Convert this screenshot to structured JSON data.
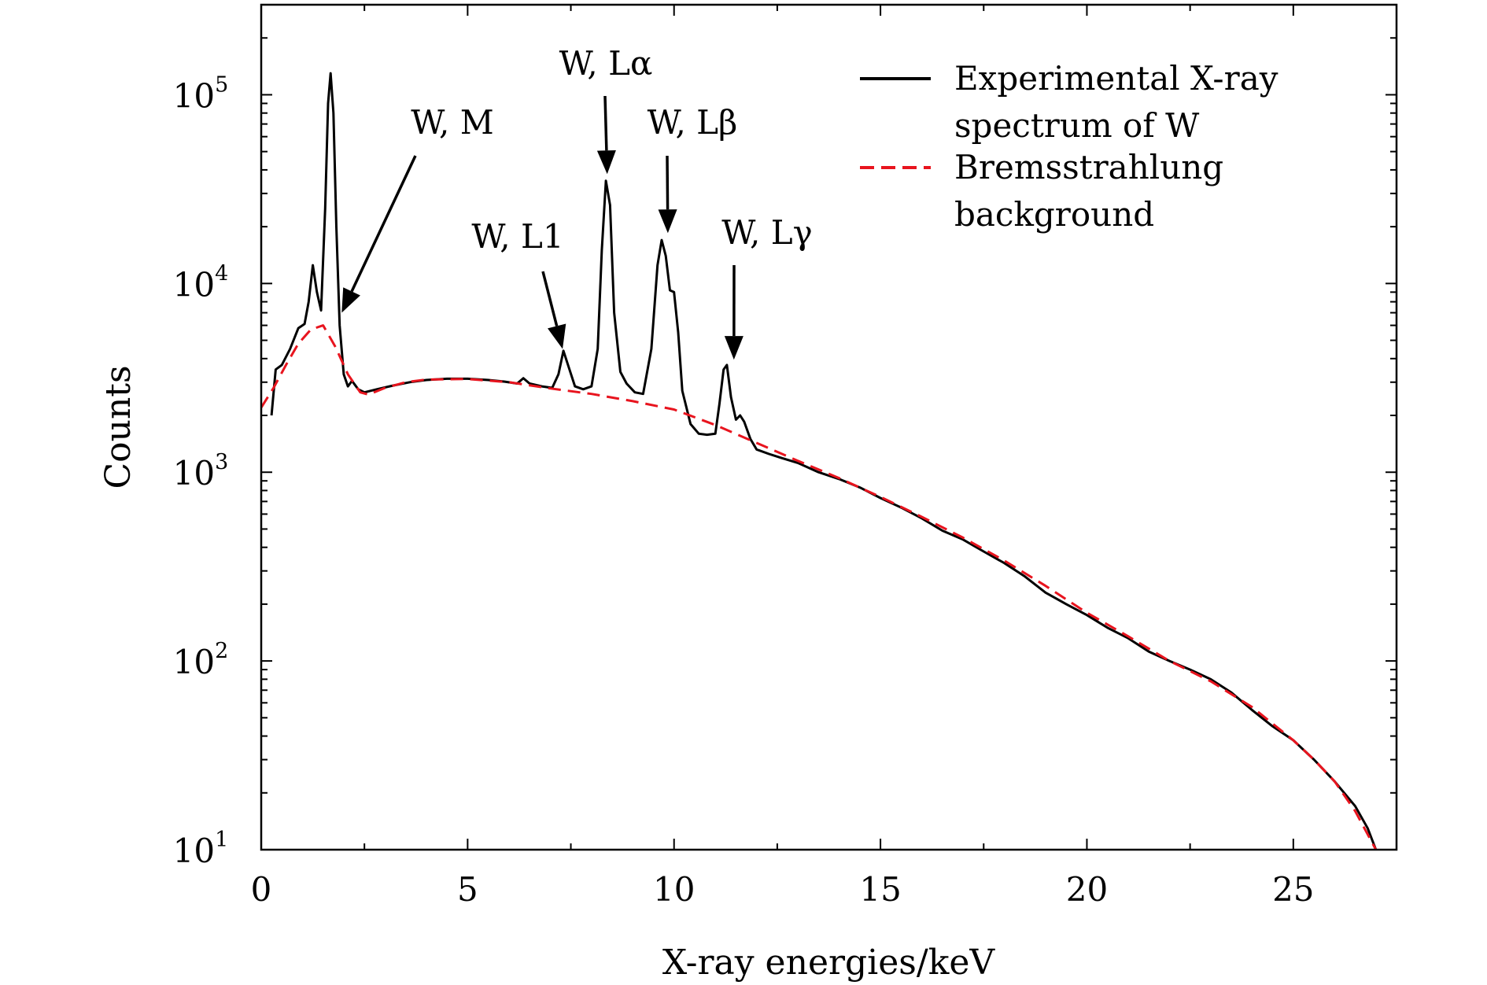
{
  "chart_data": {
    "type": "line",
    "title": "",
    "xlabel": "X-ray energies/keV",
    "ylabel": "Counts",
    "xlim": [
      0,
      27.5
    ],
    "ylim": [
      10,
      300000
    ],
    "yscale": "log",
    "grid": false,
    "legend_position": "top-right",
    "x_ticks": [
      0,
      5,
      10,
      15,
      20,
      25
    ],
    "x_tick_labels": [
      "0",
      "5",
      "10",
      "15",
      "20",
      "25"
    ],
    "y_ticks": [
      {
        "value": 10,
        "base": "10",
        "exp": "1"
      },
      {
        "value": 100,
        "base": "10",
        "exp": "2"
      },
      {
        "value": 1000,
        "base": "10",
        "exp": "3"
      },
      {
        "value": 10000,
        "base": "10",
        "exp": "4"
      },
      {
        "value": 100000,
        "base": "10",
        "exp": "5"
      }
    ],
    "series": [
      {
        "name": "Experimental X-ray spectrum of W",
        "legend_lines": [
          "Experimental X-ray",
          "spectrum of W"
        ],
        "color": "#000000",
        "style": "solid",
        "points": [
          [
            0.25,
            2000
          ],
          [
            0.35,
            3500
          ],
          [
            0.5,
            3700
          ],
          [
            0.7,
            4500
          ],
          [
            0.9,
            5800
          ],
          [
            1.05,
            6100
          ],
          [
            1.15,
            8000
          ],
          [
            1.25,
            12500
          ],
          [
            1.35,
            9000
          ],
          [
            1.45,
            7200
          ],
          [
            1.55,
            25000
          ],
          [
            1.62,
            90000
          ],
          [
            1.68,
            130000
          ],
          [
            1.75,
            80000
          ],
          [
            1.82,
            20000
          ],
          [
            1.9,
            6000
          ],
          [
            2.0,
            3300
          ],
          [
            2.1,
            2850
          ],
          [
            2.2,
            3050
          ],
          [
            2.35,
            2750
          ],
          [
            2.5,
            2650
          ],
          [
            2.8,
            2750
          ],
          [
            3.2,
            2880
          ],
          [
            3.6,
            3000
          ],
          [
            4.0,
            3080
          ],
          [
            4.5,
            3130
          ],
          [
            5.0,
            3130
          ],
          [
            5.5,
            3080
          ],
          [
            5.9,
            3020
          ],
          [
            6.2,
            2950
          ],
          [
            6.35,
            3150
          ],
          [
            6.5,
            2950
          ],
          [
            6.8,
            2850
          ],
          [
            7.05,
            2800
          ],
          [
            7.2,
            3300
          ],
          [
            7.32,
            4400
          ],
          [
            7.45,
            3600
          ],
          [
            7.6,
            2850
          ],
          [
            7.8,
            2750
          ],
          [
            8.0,
            2850
          ],
          [
            8.15,
            4500
          ],
          [
            8.25,
            15000
          ],
          [
            8.35,
            35000
          ],
          [
            8.45,
            26000
          ],
          [
            8.55,
            7000
          ],
          [
            8.7,
            3400
          ],
          [
            8.85,
            2950
          ],
          [
            9.05,
            2650
          ],
          [
            9.25,
            2600
          ],
          [
            9.45,
            4500
          ],
          [
            9.6,
            12500
          ],
          [
            9.7,
            17000
          ],
          [
            9.8,
            14000
          ],
          [
            9.9,
            9200
          ],
          [
            10.0,
            9000
          ],
          [
            10.1,
            5500
          ],
          [
            10.2,
            2700
          ],
          [
            10.4,
            1800
          ],
          [
            10.6,
            1600
          ],
          [
            10.8,
            1580
          ],
          [
            11.0,
            1600
          ],
          [
            11.1,
            2300
          ],
          [
            11.2,
            3500
          ],
          [
            11.28,
            3700
          ],
          [
            11.38,
            2500
          ],
          [
            11.5,
            1900
          ],
          [
            11.6,
            2000
          ],
          [
            11.7,
            1850
          ],
          [
            11.85,
            1500
          ],
          [
            12.0,
            1320
          ],
          [
            12.3,
            1250
          ],
          [
            12.6,
            1190
          ],
          [
            13.0,
            1120
          ],
          [
            13.5,
            1000
          ],
          [
            14.0,
            920
          ],
          [
            14.5,
            830
          ],
          [
            15.0,
            730
          ],
          [
            15.5,
            650
          ],
          [
            16.0,
            570
          ],
          [
            16.5,
            490
          ],
          [
            17.0,
            440
          ],
          [
            17.5,
            380
          ],
          [
            18.0,
            330
          ],
          [
            18.5,
            280
          ],
          [
            19.0,
            230
          ],
          [
            19.5,
            200
          ],
          [
            20.0,
            175
          ],
          [
            20.5,
            150
          ],
          [
            21.0,
            132
          ],
          [
            21.5,
            112
          ],
          [
            22.0,
            100
          ],
          [
            22.5,
            90
          ],
          [
            23.0,
            80
          ],
          [
            23.5,
            68
          ],
          [
            24.0,
            55
          ],
          [
            24.5,
            45
          ],
          [
            25.0,
            38
          ],
          [
            25.5,
            30
          ],
          [
            26.0,
            23
          ],
          [
            26.5,
            17
          ],
          [
            26.8,
            13
          ],
          [
            27.0,
            10
          ]
        ]
      },
      {
        "name": "Bremsstrahlung background",
        "legend_lines": [
          "Bremsstrahlung",
          "background"
        ],
        "color": "#e8141e",
        "style": "dashed",
        "points": [
          [
            0.0,
            2200
          ],
          [
            0.3,
            2800
          ],
          [
            0.6,
            3700
          ],
          [
            0.9,
            4800
          ],
          [
            1.2,
            5700
          ],
          [
            1.5,
            6000
          ],
          [
            1.8,
            4600
          ],
          [
            2.1,
            3300
          ],
          [
            2.4,
            2650
          ],
          [
            2.6,
            2580
          ],
          [
            3.0,
            2800
          ],
          [
            3.5,
            3000
          ],
          [
            4.0,
            3100
          ],
          [
            5.0,
            3120
          ],
          [
            6.0,
            3000
          ],
          [
            7.0,
            2780
          ],
          [
            8.0,
            2600
          ],
          [
            9.0,
            2380
          ],
          [
            10.0,
            2150
          ],
          [
            11.0,
            1780
          ],
          [
            12.0,
            1430
          ],
          [
            13.0,
            1150
          ],
          [
            14.0,
            930
          ],
          [
            15.0,
            740
          ],
          [
            16.0,
            580
          ],
          [
            17.0,
            450
          ],
          [
            18.0,
            340
          ],
          [
            19.0,
            250
          ],
          [
            20.0,
            180
          ],
          [
            21.0,
            135
          ],
          [
            22.0,
            100
          ],
          [
            23.0,
            78
          ],
          [
            24.0,
            57
          ],
          [
            25.0,
            38
          ],
          [
            25.5,
            30
          ],
          [
            26.0,
            23
          ],
          [
            26.5,
            16
          ],
          [
            27.0,
            10
          ]
        ]
      }
    ],
    "annotations": [
      {
        "label": "W, M",
        "tip": [
          1.95,
          7000
        ]
      },
      {
        "label": "W, L1",
        "tip": [
          7.3,
          4500
        ]
      },
      {
        "label": "W, Lα",
        "tip": [
          8.38,
          38000
        ]
      },
      {
        "label": "W, Lβ",
        "tip": [
          9.85,
          18500
        ]
      },
      {
        "label": "W, Lγ",
        "tip": [
          11.45,
          3950
        ]
      }
    ]
  }
}
